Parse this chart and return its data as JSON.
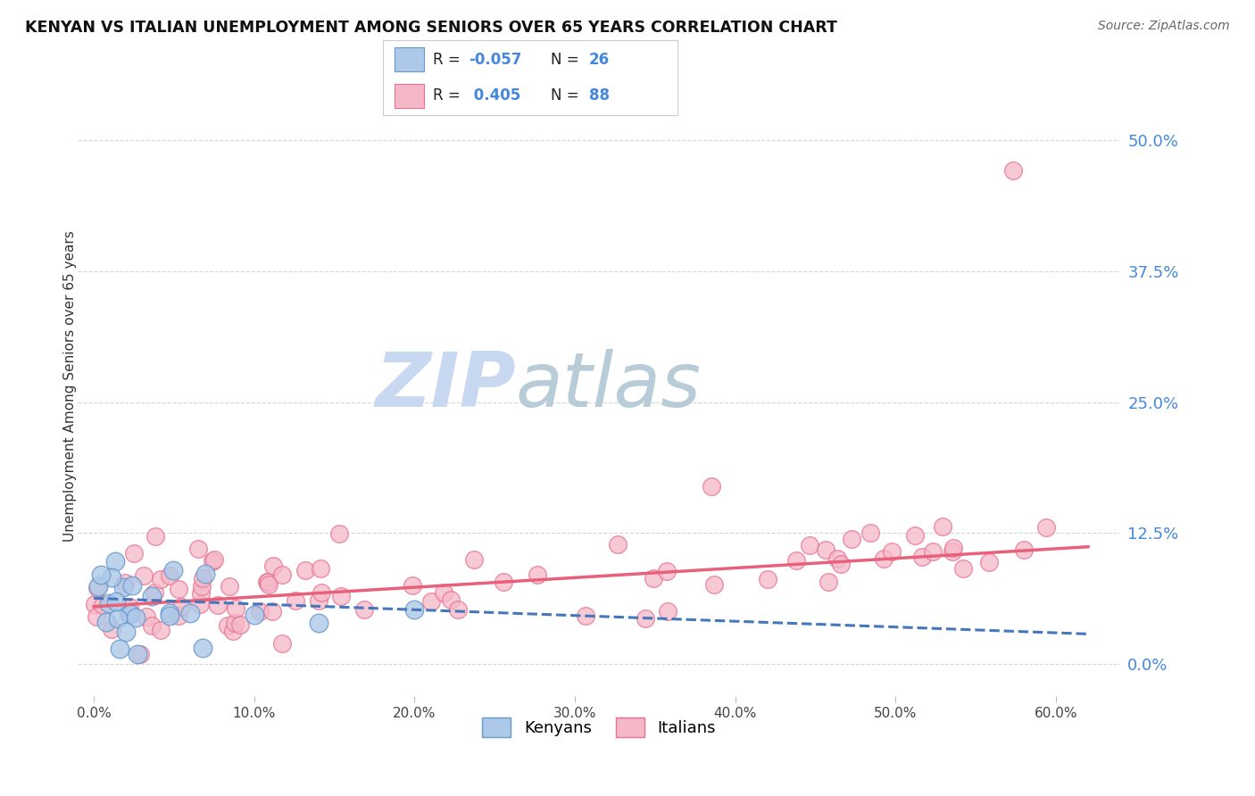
{
  "title": "KENYAN VS ITALIAN UNEMPLOYMENT AMONG SENIORS OVER 65 YEARS CORRELATION CHART",
  "source": "Source: ZipAtlas.com",
  "ylabel": "Unemployment Among Seniors over 65 years",
  "xlabel_ticks": [
    "0.0%",
    "10.0%",
    "20.0%",
    "30.0%",
    "40.0%",
    "50.0%",
    "60.0%"
  ],
  "xlabel_vals": [
    0.0,
    0.1,
    0.2,
    0.3,
    0.4,
    0.5,
    0.6
  ],
  "ylabel_ticks": [
    "0.0%",
    "12.5%",
    "25.0%",
    "37.5%",
    "50.0%"
  ],
  "ylabel_vals": [
    0.0,
    0.125,
    0.25,
    0.375,
    0.5
  ],
  "ylim": [
    -0.03,
    0.56
  ],
  "xlim": [
    -0.01,
    0.64
  ],
  "kenyan_color": "#adc8e8",
  "kenyan_edge_color": "#6699cc",
  "italian_color": "#f5b8c8",
  "italian_edge_color": "#e87090",
  "kenyan_line_color": "#4477bb",
  "italian_line_color": "#e8607a",
  "watermark_zip_color": "#c8d8f0",
  "watermark_atlas_color": "#c8d8e0",
  "bg_color": "#ffffff",
  "grid_color": "#cccccc",
  "right_tick_color": "#4488dd",
  "legend_text_color": "#4488dd",
  "kenyan_R": -0.057,
  "kenyan_N": 26,
  "italian_R": 0.405,
  "italian_N": 88,
  "ken_slope": -0.055,
  "ken_intercept": 0.063,
  "ita_slope": 0.092,
  "ita_intercept": 0.055
}
